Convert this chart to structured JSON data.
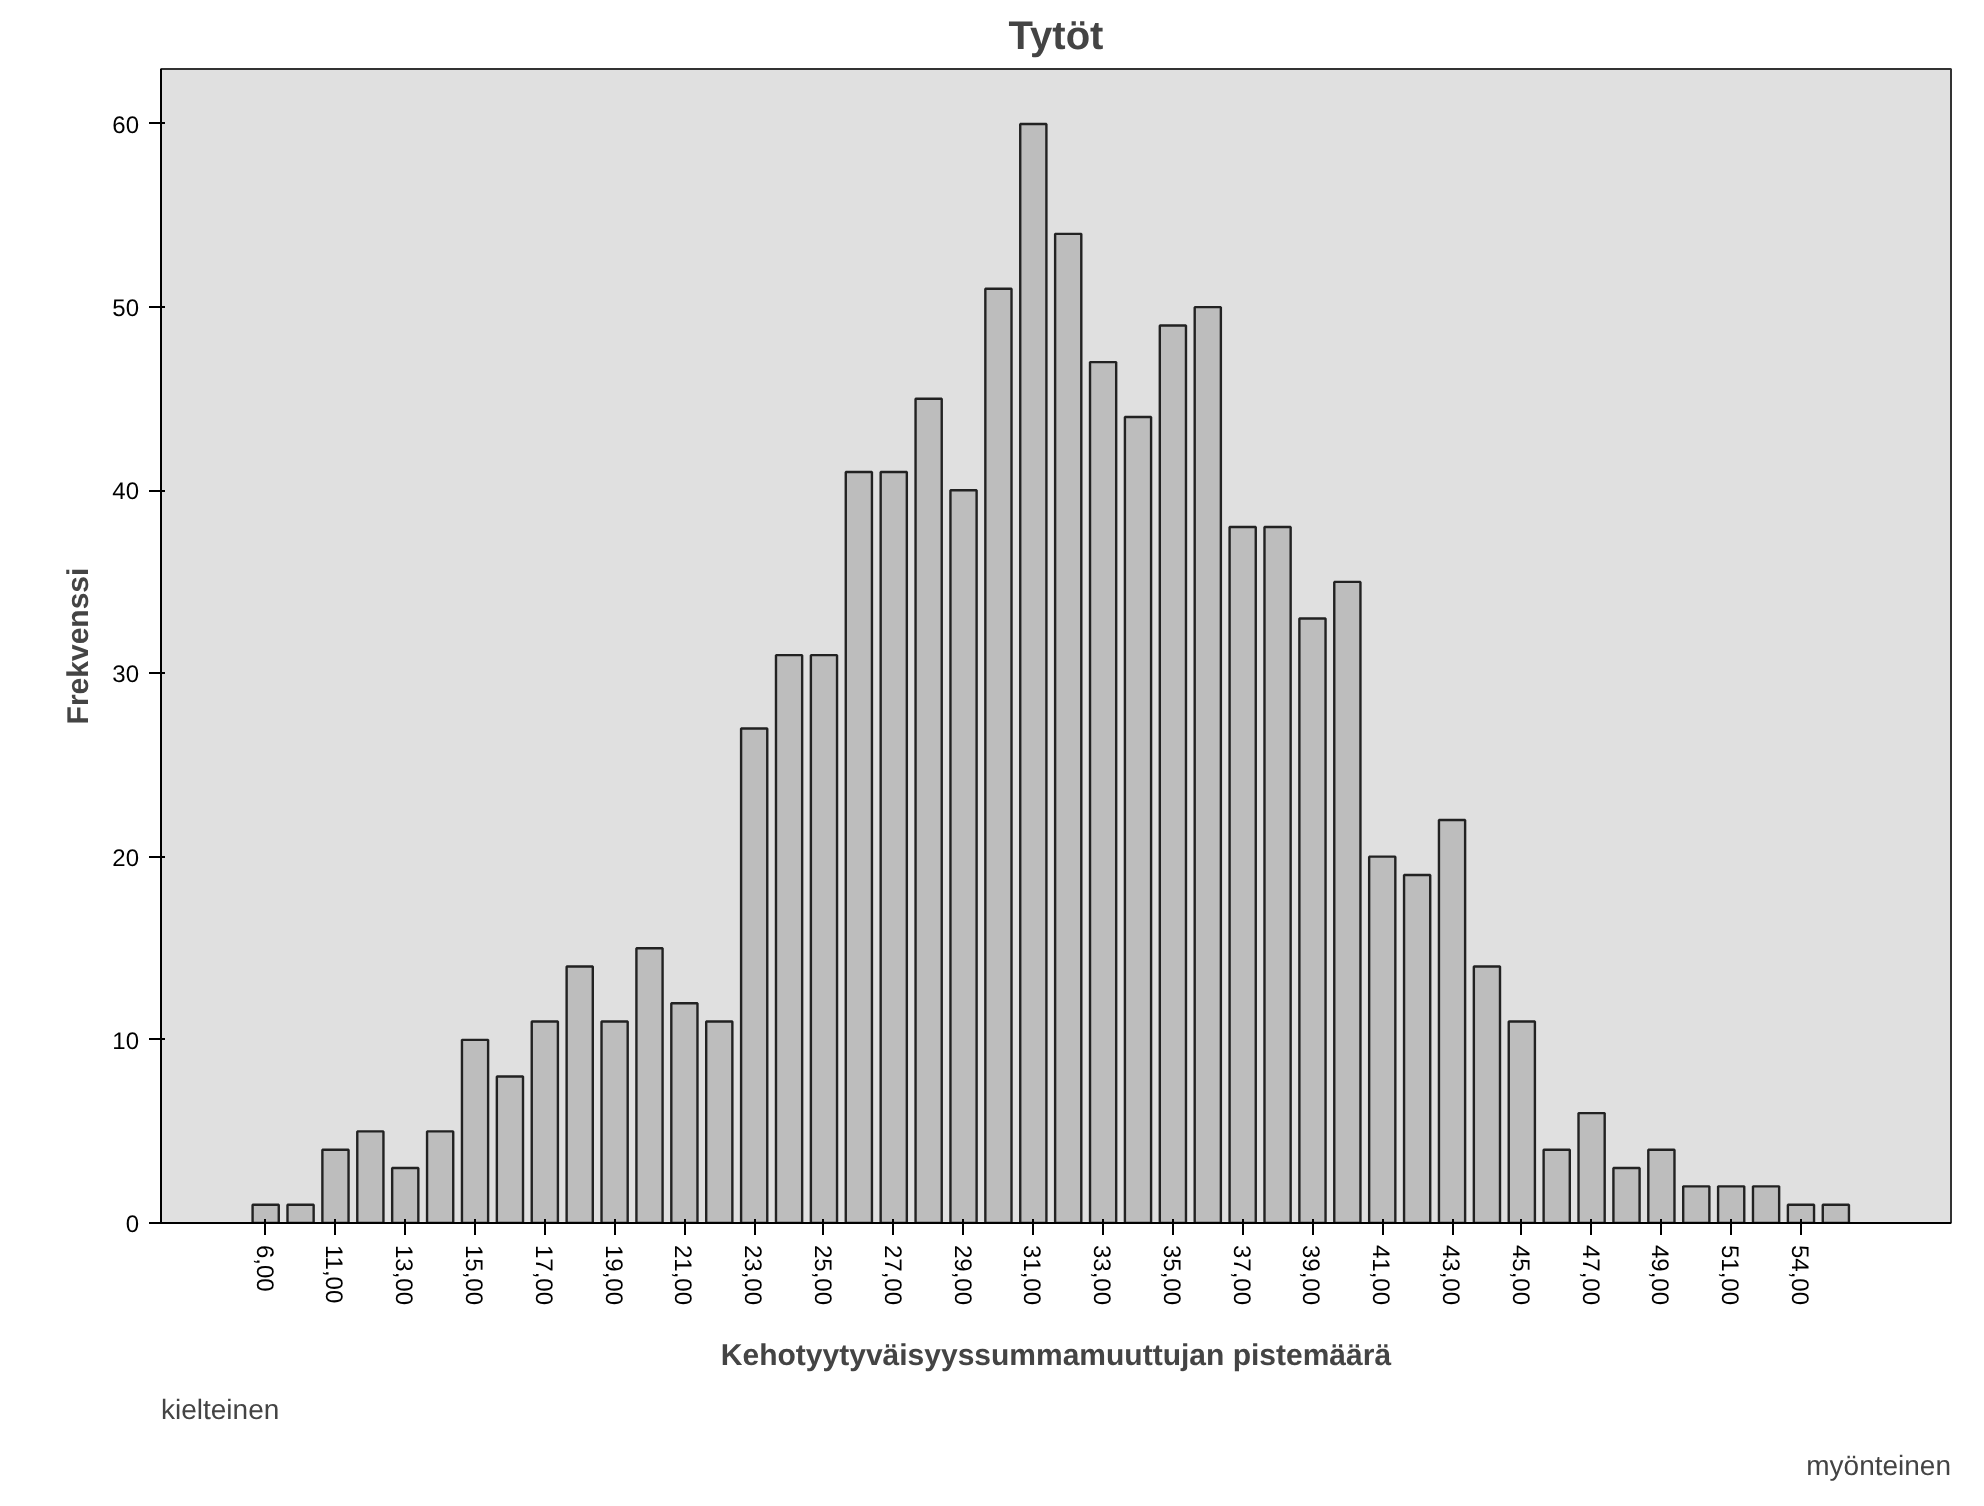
{
  "chart_data": {
    "type": "bar",
    "title": "Tytöt",
    "xlabel": "Kehotyytyväisyyssummamuuttujan pistemäärä",
    "ylabel": "Frekvenssi",
    "categories": [
      "6,00",
      null,
      "11,00",
      null,
      "13,00",
      null,
      "15,00",
      null,
      "17,00",
      null,
      "19,00",
      null,
      "21,00",
      null,
      "23,00",
      null,
      "25,00",
      null,
      "27,00",
      null,
      "29,00",
      null,
      "31,00",
      null,
      "33,00",
      null,
      "35,00",
      null,
      "37,00",
      null,
      "39,00",
      null,
      "41,00",
      null,
      "43,00",
      null,
      "45,00",
      null,
      "47,00",
      null,
      "49,00",
      null,
      "51,00",
      null,
      "54,00",
      null
    ],
    "values": [
      1,
      1,
      4,
      5,
      3,
      5,
      10,
      8,
      11,
      14,
      11,
      15,
      12,
      11,
      27,
      31,
      31,
      41,
      41,
      45,
      40,
      51,
      60,
      54,
      47,
      44,
      49,
      50,
      38,
      38,
      33,
      35,
      20,
      19,
      22,
      14,
      11,
      4,
      6,
      3,
      4,
      2,
      2,
      2,
      1,
      1
    ],
    "color": "#bdbdbd",
    "ylim": [
      0,
      63
    ],
    "yticks": [
      0,
      10,
      20,
      30,
      40,
      50,
      60
    ],
    "grid": false,
    "annotations": [
      "kielteinen",
      "myönteinen"
    ]
  }
}
